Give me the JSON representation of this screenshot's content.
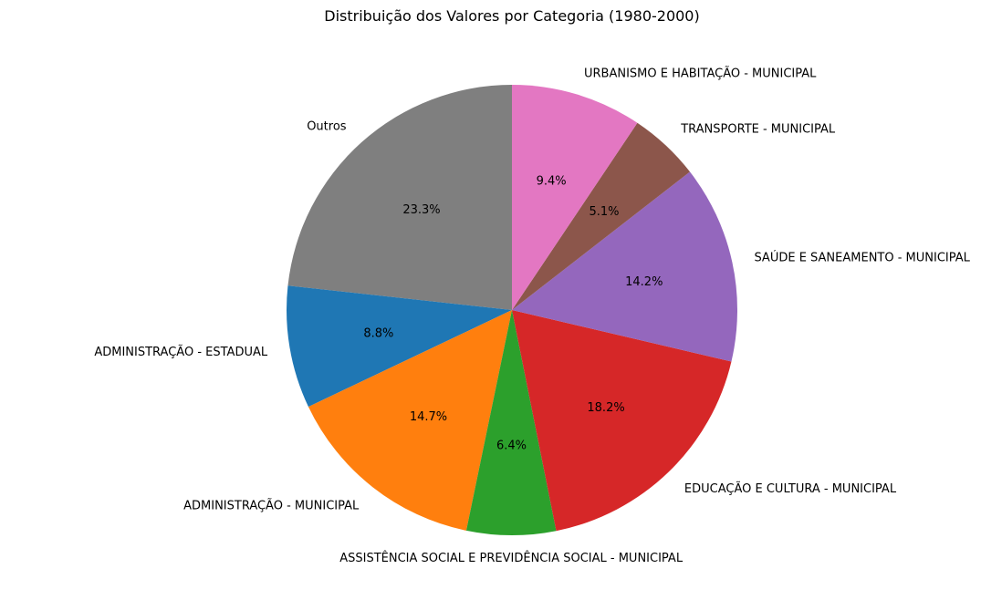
{
  "chart_data": {
    "type": "pie",
    "title": "Distribuição dos Valores por Categoria (1980-2000)",
    "start_angle_deg": 90,
    "direction": "counterclockwise",
    "slices": [
      {
        "label": "Outros",
        "value": 23.3,
        "pct_label": "23.3%",
        "color": "#7f7f7f"
      },
      {
        "label": "ADMINISTRAÇÃO - ESTADUAL",
        "value": 8.8,
        "pct_label": "8.8%",
        "color": "#1f77b4"
      },
      {
        "label": "ADMINISTRAÇÃO - MUNICIPAL",
        "value": 14.7,
        "pct_label": "14.7%",
        "color": "#ff7f0e"
      },
      {
        "label": "ASSISTÊNCIA SOCIAL E PREVIDÊNCIA SOCIAL - MUNICIPAL",
        "value": 6.4,
        "pct_label": "6.4%",
        "color": "#2ca02c"
      },
      {
        "label": "EDUCAÇÃO E CULTURA - MUNICIPAL",
        "value": 18.2,
        "pct_label": "18.2%",
        "color": "#d62728"
      },
      {
        "label": "SAÚDE E SANEAMENTO - MUNICIPAL",
        "value": 14.2,
        "pct_label": "14.2%",
        "color": "#9467bd"
      },
      {
        "label": "TRANSPORTE - MUNICIPAL",
        "value": 5.1,
        "pct_label": "5.1%",
        "color": "#8c564b"
      },
      {
        "label": "URBANISMO E HABITAÇÃO - MUNICIPAL",
        "value": 9.4,
        "pct_label": "9.4%",
        "color": "#e377c2"
      }
    ]
  }
}
